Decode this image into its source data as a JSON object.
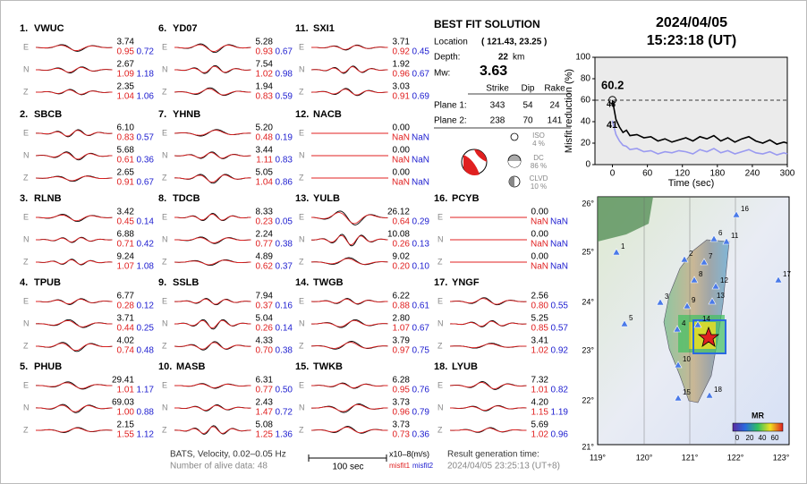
{
  "header": {
    "date": "2024/04/05",
    "time": "15:23:18  (UT)"
  },
  "stations": [
    {
      "id": "1.",
      "name": "VWUC",
      "traces": [
        {
          "label": "E",
          "amp": "3.74",
          "misfit1": "0.95",
          "misfit2": "0.72"
        },
        {
          "label": "N",
          "amp": "2.67",
          "misfit1": "1.09",
          "misfit2": "1.18"
        },
        {
          "label": "Z",
          "amp": "2.35",
          "misfit1": "1.04",
          "misfit2": "1.06"
        }
      ]
    },
    {
      "id": "2.",
      "name": "SBCB",
      "traces": [
        {
          "label": "E",
          "amp": "6.10",
          "misfit1": "0.83",
          "misfit2": "0.57"
        },
        {
          "label": "N",
          "amp": "5.68",
          "misfit1": "0.61",
          "misfit2": "0.36"
        },
        {
          "label": "Z",
          "amp": "2.65",
          "misfit1": "0.91",
          "misfit2": "0.67"
        }
      ]
    },
    {
      "id": "3.",
      "name": "RLNB",
      "traces": [
        {
          "label": "E",
          "amp": "3.42",
          "misfit1": "0.45",
          "misfit2": "0.14"
        },
        {
          "label": "N",
          "amp": "6.88",
          "misfit1": "0.71",
          "misfit2": "0.42"
        },
        {
          "label": "Z",
          "amp": "9.24",
          "misfit1": "1.07",
          "misfit2": "1.08"
        }
      ]
    },
    {
      "id": "4.",
      "name": "TPUB",
      "traces": [
        {
          "label": "E",
          "amp": "6.77",
          "misfit1": "0.28",
          "misfit2": "0.12"
        },
        {
          "label": "N",
          "amp": "3.71",
          "misfit1": "0.44",
          "misfit2": "0.25"
        },
        {
          "label": "Z",
          "amp": "4.02",
          "misfit1": "0.74",
          "misfit2": "0.48"
        }
      ]
    },
    {
      "id": "5.",
      "name": "PHUB",
      "traces": [
        {
          "label": "E",
          "amp": "29.41",
          "misfit1": "1.01",
          "misfit2": "1.17"
        },
        {
          "label": "N",
          "amp": "69.03",
          "misfit1": "1.00",
          "misfit2": "0.88"
        },
        {
          "label": "Z",
          "amp": "2.15",
          "misfit1": "1.55",
          "misfit2": "1.12"
        }
      ]
    },
    {
      "id": "6.",
      "name": "YD07",
      "traces": [
        {
          "label": "E",
          "amp": "5.28",
          "misfit1": "0.93",
          "misfit2": "0.67"
        },
        {
          "label": "N",
          "amp": "7.54",
          "misfit1": "1.02",
          "misfit2": "0.98"
        },
        {
          "label": "Z",
          "amp": "1.94",
          "misfit1": "0.83",
          "misfit2": "0.59"
        }
      ]
    },
    {
      "id": "7.",
      "name": "YHNB",
      "traces": [
        {
          "label": "E",
          "amp": "5.20",
          "misfit1": "0.48",
          "misfit2": "0.19"
        },
        {
          "label": "N",
          "amp": "3.44",
          "misfit1": "1.11",
          "misfit2": "0.83"
        },
        {
          "label": "Z",
          "amp": "5.05",
          "misfit1": "1.04",
          "misfit2": "0.86"
        }
      ]
    },
    {
      "id": "8.",
      "name": "TDCB",
      "traces": [
        {
          "label": "E",
          "amp": "8.33",
          "misfit1": "0.23",
          "misfit2": "0.05"
        },
        {
          "label": "N",
          "amp": "2.24",
          "misfit1": "0.77",
          "misfit2": "0.38"
        },
        {
          "label": "Z",
          "amp": "4.89",
          "misfit1": "0.62",
          "misfit2": "0.37"
        }
      ]
    },
    {
      "id": "9.",
      "name": "SSLB",
      "traces": [
        {
          "label": "E",
          "amp": "7.94",
          "misfit1": "0.37",
          "misfit2": "0.16"
        },
        {
          "label": "N",
          "amp": "5.04",
          "misfit1": "0.26",
          "misfit2": "0.14"
        },
        {
          "label": "Z",
          "amp": "4.33",
          "misfit1": "0.70",
          "misfit2": "0.38"
        }
      ]
    },
    {
      "id": "10.",
      "name": "MASB",
      "traces": [
        {
          "label": "E",
          "amp": "6.31",
          "misfit1": "0.77",
          "misfit2": "0.50"
        },
        {
          "label": "N",
          "amp": "2.43",
          "misfit1": "1.47",
          "misfit2": "0.72"
        },
        {
          "label": "Z",
          "amp": "5.08",
          "misfit1": "1.25",
          "misfit2": "1.36"
        }
      ]
    },
    {
      "id": "11.",
      "name": "SXI1",
      "traces": [
        {
          "label": "E",
          "amp": "3.71",
          "misfit1": "0.92",
          "misfit2": "0.45"
        },
        {
          "label": "N",
          "amp": "1.92",
          "misfit1": "0.96",
          "misfit2": "0.67"
        },
        {
          "label": "Z",
          "amp": "3.03",
          "misfit1": "0.91",
          "misfit2": "0.69"
        }
      ]
    },
    {
      "id": "12.",
      "name": "NACB",
      "traces": [
        {
          "label": "E",
          "amp": "0.00",
          "misfit1": "NaN",
          "misfit2": "NaN"
        },
        {
          "label": "N",
          "amp": "0.00",
          "misfit1": "NaN",
          "misfit2": "NaN"
        },
        {
          "label": "Z",
          "amp": "0.00",
          "misfit1": "NaN",
          "misfit2": "NaN"
        }
      ]
    },
    {
      "id": "13.",
      "name": "YULB",
      "traces": [
        {
          "label": "E",
          "amp": "26.12",
          "misfit1": "0.64",
          "misfit2": "0.29"
        },
        {
          "label": "N",
          "amp": "10.08",
          "misfit1": "0.26",
          "misfit2": "0.13"
        },
        {
          "label": "Z",
          "amp": "9.02",
          "misfit1": "0.20",
          "misfit2": "0.10"
        }
      ]
    },
    {
      "id": "14.",
      "name": "TWGB",
      "traces": [
        {
          "label": "E",
          "amp": "6.22",
          "misfit1": "0.88",
          "misfit2": "0.61"
        },
        {
          "label": "N",
          "amp": "2.80",
          "misfit1": "1.07",
          "misfit2": "0.67"
        },
        {
          "label": "Z",
          "amp": "3.79",
          "misfit1": "0.97",
          "misfit2": "0.75"
        }
      ]
    },
    {
      "id": "15.",
      "name": "TWKB",
      "traces": [
        {
          "label": "E",
          "amp": "6.28",
          "misfit1": "0.95",
          "misfit2": "0.76"
        },
        {
          "label": "N",
          "amp": "3.73",
          "misfit1": "0.96",
          "misfit2": "0.79"
        },
        {
          "label": "Z",
          "amp": "3.73",
          "misfit1": "0.73",
          "misfit2": "0.36"
        }
      ]
    },
    {
      "id": "16.",
      "name": "PCYB",
      "traces": [
        {
          "label": "E",
          "amp": "0.00",
          "misfit1": "NaN",
          "misfit2": "NaN"
        },
        {
          "label": "N",
          "amp": "0.00",
          "misfit1": "NaN",
          "misfit2": "NaN"
        },
        {
          "label": "Z",
          "amp": "0.00",
          "misfit1": "NaN",
          "misfit2": "NaN"
        }
      ]
    },
    {
      "id": "17.",
      "name": "YNGF",
      "traces": [
        {
          "label": "E",
          "amp": "2.56",
          "misfit1": "0.80",
          "misfit2": "0.55"
        },
        {
          "label": "N",
          "amp": "5.25",
          "misfit1": "0.85",
          "misfit2": "0.57"
        },
        {
          "label": "Z",
          "amp": "3.41",
          "misfit1": "1.02",
          "misfit2": "0.92"
        }
      ]
    },
    {
      "id": "18.",
      "name": "LYUB",
      "traces": [
        {
          "label": "E",
          "amp": "7.32",
          "misfit1": "1.01",
          "misfit2": "0.82"
        },
        {
          "label": "N",
          "amp": "4.20",
          "misfit1": "1.15",
          "misfit2": "1.19"
        },
        {
          "label": "Z",
          "amp": "5.69",
          "misfit1": "1.02",
          "misfit2": "0.96"
        }
      ]
    }
  ],
  "solution": {
    "title": "BEST FIT SOLUTION",
    "location_label": "Location",
    "location": "( 121.43,  23.25 )",
    "depth_label": "Depth:",
    "depth": "22",
    "depth_unit": "km",
    "mw_label": "Mw:",
    "mw": "3.63",
    "columns": [
      "Strike",
      "Dip",
      "Rake"
    ],
    "planes": [
      {
        "label": "Plane 1:",
        "values": [
          "343",
          "54",
          "24"
        ]
      },
      {
        "label": "Plane 2:",
        "values": [
          "238",
          "70",
          "141"
        ]
      }
    ],
    "components": [
      {
        "name": "ISO",
        "percent": "4 %"
      },
      {
        "name": "DC",
        "percent": "86 %"
      },
      {
        "name": "CLVD",
        "percent": "10 %"
      }
    ]
  },
  "chart_data": {
    "type": "line",
    "y_label": "Misfit reduction (%)",
    "x_label": "Time (sec)",
    "xlim": [
      -30,
      300
    ],
    "ylim": [
      0,
      100
    ],
    "xticks": [
      0,
      60,
      120,
      180,
      240,
      300
    ],
    "yticks": [
      0,
      20,
      40,
      60,
      80,
      100
    ],
    "hline": 60,
    "annotations": [
      {
        "text": "60.2",
        "color": "#e02020"
      },
      {
        "text": "46",
        "color": "#aaaaaa"
      },
      {
        "text": "41",
        "color": "#9a9af0"
      }
    ],
    "series": [
      {
        "color": "#000000",
        "x": [
          0,
          6,
          12,
          18,
          24,
          30,
          42,
          54,
          66,
          78,
          90,
          102,
          114,
          126,
          138,
          150,
          162,
          174,
          186,
          198,
          210,
          222,
          234,
          246,
          258,
          270,
          282,
          294,
          300
        ],
        "values": [
          60.2,
          42,
          35,
          30,
          32,
          27,
          28,
          25,
          26,
          22,
          24,
          21,
          23,
          25,
          22,
          26,
          24,
          27,
          22,
          25,
          21,
          24,
          26,
          22,
          20,
          23,
          19,
          21,
          20
        ]
      },
      {
        "color": "#9a9af0",
        "x": [
          0,
          6,
          12,
          18,
          24,
          30,
          42,
          54,
          66,
          78,
          90,
          102,
          114,
          126,
          138,
          150,
          162,
          174,
          186,
          198,
          210,
          222,
          234,
          246,
          258,
          270,
          282,
          294,
          300
        ],
        "values": [
          41,
          28,
          22,
          18,
          17,
          14,
          15,
          12,
          13,
          10,
          12,
          11,
          13,
          12,
          10,
          14,
          12,
          15,
          11,
          13,
          10,
          12,
          14,
          11,
          10,
          12,
          9,
          11,
          10
        ]
      }
    ]
  },
  "map": {
    "lat_labels": [
      "26°",
      "25°",
      "24°",
      "23°",
      "22°",
      "21°"
    ],
    "lon_labels": [
      "119°",
      "120°",
      "121°",
      "122°",
      "123°"
    ],
    "station_labels": [
      "1",
      "2",
      "3",
      "4",
      "5",
      "6",
      "7",
      "8",
      "9",
      "10",
      "11",
      "12",
      "13",
      "14",
      "15",
      "16",
      "17",
      "18"
    ],
    "colorbar_title": "MR",
    "colorbar_ticks": [
      "0",
      "20",
      "40",
      "60"
    ]
  },
  "footer": {
    "network": "BATS, Velocity, 0.02–0.05 Hz",
    "alive": "Number of alive data: 48",
    "scale": "100 sec",
    "units": "x10–8(m/s)",
    "misfit1": "misfit1",
    "misfit2": "misfit2",
    "result_label": "Result generation time:",
    "result_time": "2024/04/05 23:25:13 (UT+8)"
  }
}
